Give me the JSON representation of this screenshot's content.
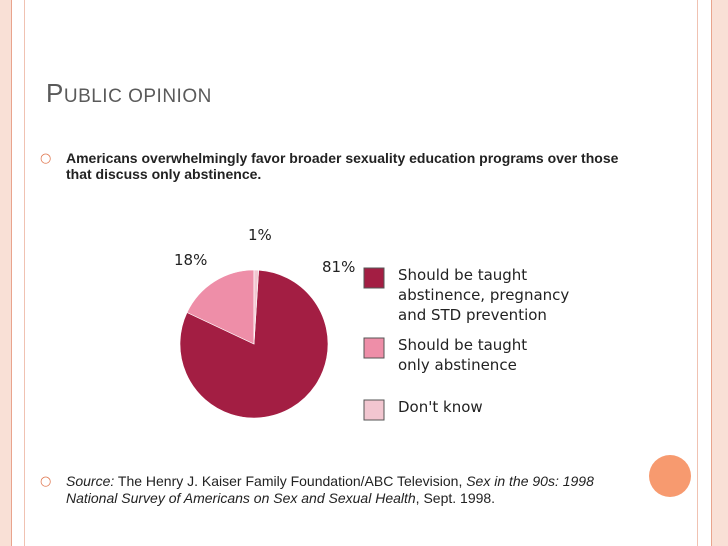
{
  "slide": {
    "title_first": "P",
    "title_rest": "UBLIC OPINION",
    "bullet1": "Americans overwhelmingly favor broader sexuality education programs over those that discuss only abstinence.",
    "source_label": "Source:",
    "source_org": " The Henry J. Kaiser Family Foundation/ABC Television, ",
    "source_title": "Sex in the 90s: 1998 National Survey of Americans on Sex and Sexual Health",
    "source_date": ", Sept. 1998.",
    "bullet_icon": "orange-ring-bullet"
  },
  "colors": {
    "accent": "#e0774f",
    "slice_main": "#a31e43",
    "slice_abstinence": "#ee8ea8",
    "slice_dontknow": "#f2c6d0"
  },
  "chart_data": {
    "type": "pie",
    "title": "",
    "slices": [
      {
        "label": "Should be taught abstinence, pregnancy and STD prevention",
        "value": 81,
        "pct_label": "81%"
      },
      {
        "label": "Should be taught only abstinence",
        "value": 18,
        "pct_label": "18%"
      },
      {
        "label": "Don't know",
        "value": 1,
        "pct_label": "1%"
      }
    ],
    "legend": {
      "placement": "right",
      "items": [
        {
          "lines": [
            "Should be taught",
            "abstinence, pregnancy",
            "and STD prevention"
          ]
        },
        {
          "lines": [
            "Should be taught",
            "only abstinence"
          ]
        },
        {
          "lines": [
            "Don't know"
          ]
        }
      ]
    }
  }
}
